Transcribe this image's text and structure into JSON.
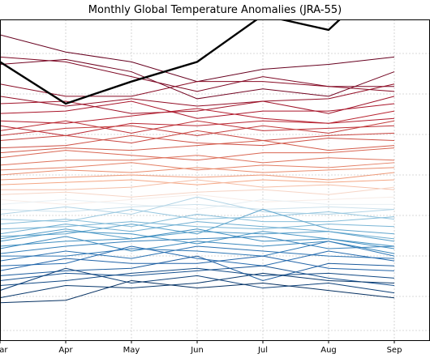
{
  "chart_data": {
    "type": "line",
    "title": "Monthly Global Temperature Anomalies (JRA-55)",
    "categories": [
      "Mar",
      "Apr",
      "May",
      "Jun",
      "Jul",
      "Aug",
      "Sep"
    ],
    "grid": true,
    "colors": {
      "highlight": "#000000",
      "warm": "#b2182b",
      "neutral": "#f7f7f7",
      "cool": "#2166ac",
      "grid": "#cccccc",
      "axis": "#000000"
    },
    "highlight_series": {
      "values": [
        0.7,
        0.53,
        0.62,
        0.7,
        0.89,
        0.83,
        1.08
      ]
    },
    "series": [
      {
        "values": [
          0.81,
          0.74,
          0.7,
          0.62,
          0.67,
          0.69,
          0.72
        ]
      },
      {
        "values": [
          0.69,
          0.71,
          0.66,
          0.55,
          0.59,
          0.56,
          0.66
        ]
      },
      {
        "values": [
          0.72,
          0.7,
          0.64,
          0.58,
          0.64,
          0.6,
          0.6
        ]
      },
      {
        "values": [
          0.61,
          0.56,
          0.56,
          0.62,
          0.62,
          0.6,
          0.58
        ]
      },
      {
        "values": [
          0.56,
          0.52,
          0.55,
          0.52,
          0.54,
          0.55,
          0.61
        ]
      },
      {
        "values": [
          0.53,
          0.54,
          0.49,
          0.5,
          0.54,
          0.49,
          0.56
        ]
      },
      {
        "values": [
          0.49,
          0.5,
          0.54,
          0.47,
          0.5,
          0.5,
          0.53
        ]
      },
      {
        "values": [
          0.46,
          0.45,
          0.48,
          0.51,
          0.47,
          0.45,
          0.47
        ]
      },
      {
        "values": [
          0.44,
          0.4,
          0.45,
          0.44,
          0.46,
          0.45,
          0.5
        ]
      },
      {
        "values": [
          0.42,
          0.46,
          0.41,
          0.46,
          0.42,
          0.43,
          0.44
        ]
      },
      {
        "values": [
          0.4,
          0.43,
          0.44,
          0.4,
          0.44,
          0.41,
          0.46
        ]
      },
      {
        "values": [
          0.38,
          0.4,
          0.37,
          0.42,
          0.38,
          0.4,
          0.41
        ]
      },
      {
        "values": [
          0.35,
          0.36,
          0.4,
          0.37,
          0.36,
          0.39,
          0.38
        ]
      },
      {
        "values": [
          0.33,
          0.35,
          0.34,
          0.36,
          0.38,
          0.34,
          0.36
        ]
      },
      {
        "values": [
          0.31,
          0.34,
          0.32,
          0.3,
          0.33,
          0.33,
          0.35
        ]
      },
      {
        "values": [
          0.28,
          0.3,
          0.3,
          0.32,
          0.29,
          0.31,
          0.3
        ]
      },
      {
        "values": [
          0.26,
          0.27,
          0.29,
          0.26,
          0.28,
          0.27,
          0.29
        ]
      },
      {
        "values": [
          0.24,
          0.26,
          0.25,
          0.27,
          0.25,
          0.26,
          0.27
        ]
      },
      {
        "values": [
          0.22,
          0.23,
          0.24,
          0.23,
          0.24,
          0.22,
          0.25
        ]
      },
      {
        "values": [
          0.2,
          0.21,
          0.22,
          0.2,
          0.22,
          0.21,
          0.22
        ]
      },
      {
        "values": [
          0.18,
          0.18,
          0.19,
          0.22,
          0.19,
          0.2,
          0.18
        ]
      },
      {
        "values": [
          0.16,
          0.17,
          0.15,
          0.17,
          0.18,
          0.16,
          0.19
        ]
      },
      {
        "values": [
          0.14,
          0.12,
          0.14,
          0.16,
          0.13,
          0.14,
          0.15
        ]
      },
      {
        "values": [
          0.12,
          0.14,
          0.12,
          0.1,
          0.14,
          0.12,
          0.12
        ]
      },
      {
        "values": [
          0.1,
          0.09,
          0.11,
          0.12,
          0.1,
          0.11,
          0.1
        ]
      },
      {
        "values": [
          0.08,
          0.11,
          0.08,
          0.15,
          0.09,
          0.08,
          0.1
        ]
      },
      {
        "values": [
          0.06,
          0.05,
          0.1,
          0.06,
          0.07,
          0.09,
          0.06
        ]
      },
      {
        "values": [
          0.04,
          0.06,
          0.03,
          0.08,
          0.05,
          0.05,
          0.07
        ]
      },
      {
        "values": [
          0.02,
          0.03,
          0.05,
          0.03,
          0.02,
          0.04,
          0.03
        ]
      },
      {
        "values": [
          0.0,
          0.04,
          0.01,
          0.05,
          0.03,
          0.01,
          -0.02
        ]
      },
      {
        "values": [
          -0.01,
          0.0,
          0.04,
          0.0,
          0.1,
          0.02,
          0.0
        ]
      },
      {
        "values": [
          -0.02,
          0.02,
          -0.02,
          0.01,
          0.0,
          0.01,
          -0.03
        ]
      },
      {
        "values": [
          -0.03,
          0.01,
          0.0,
          -0.04,
          0.01,
          -0.02,
          -0.05
        ]
      },
      {
        "values": [
          -0.05,
          -0.03,
          -0.02,
          0.02,
          -0.03,
          -0.02,
          -0.06
        ]
      },
      {
        "values": [
          -0.06,
          -0.01,
          -0.07,
          -0.03,
          -0.05,
          -0.03,
          -0.08
        ]
      },
      {
        "values": [
          -0.08,
          -0.05,
          -0.03,
          -0.02,
          -0.01,
          -0.06,
          -0.05
        ]
      },
      {
        "values": [
          -0.09,
          -0.09,
          -0.06,
          -0.07,
          -0.09,
          -0.03,
          -0.09
        ]
      },
      {
        "values": [
          -0.11,
          -0.07,
          -0.1,
          -0.05,
          -0.07,
          -0.09,
          -0.1
        ]
      },
      {
        "values": [
          -0.13,
          -0.12,
          -0.05,
          -0.1,
          -0.13,
          -0.07,
          -0.11
        ]
      },
      {
        "values": [
          -0.15,
          -0.1,
          -0.12,
          -0.12,
          -0.09,
          -0.14,
          -0.15
        ]
      },
      {
        "values": [
          -0.17,
          -0.15,
          -0.14,
          -0.09,
          -0.19,
          -0.12,
          -0.13
        ]
      },
      {
        "values": [
          -0.19,
          -0.16,
          -0.17,
          -0.15,
          -0.13,
          -0.18,
          -0.21
        ]
      },
      {
        "values": [
          -0.21,
          -0.19,
          -0.16,
          -0.14,
          -0.17,
          -0.16,
          -0.18
        ]
      },
      {
        "values": [
          -0.23,
          -0.14,
          -0.2,
          -0.17,
          -0.22,
          -0.2,
          -0.24
        ]
      },
      {
        "values": [
          -0.26,
          -0.21,
          -0.22,
          -0.2,
          -0.16,
          -0.19,
          -0.2
        ]
      },
      {
        "values": [
          -0.28,
          -0.27,
          -0.19,
          -0.22,
          -0.2,
          -0.23,
          -0.26
        ]
      }
    ]
  }
}
